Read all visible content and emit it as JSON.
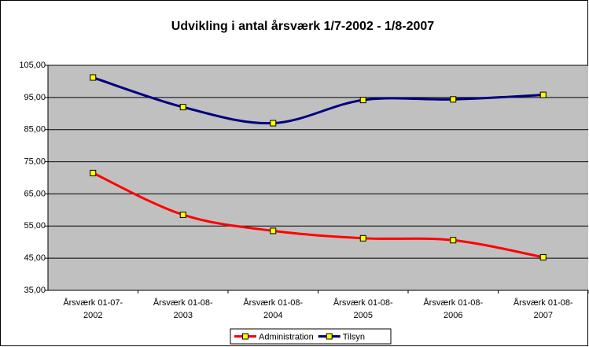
{
  "chart_data": {
    "type": "line",
    "title": "Udvikling i antal årsværk 1/7-2002 - 1/8-2007",
    "categories": [
      [
        "Årsværk 01-07-",
        "2002"
      ],
      [
        "Årsværk 01-08-",
        "2003"
      ],
      [
        "Årsværk 01-08-",
        "2004"
      ],
      [
        "Årsværk 01-08-",
        "2005"
      ],
      [
        "Årsværk 01-08-",
        "2006"
      ],
      [
        "Årsværk 01-08-",
        "2007"
      ]
    ],
    "series": [
      {
        "name": "Administration",
        "color": "#ff0000",
        "values": [
          71.5,
          58.5,
          53.5,
          51.2,
          50.6,
          45.3
        ]
      },
      {
        "name": "Tilsyn",
        "color": "#000080",
        "values": [
          101.2,
          92.0,
          87.0,
          94.2,
          94.4,
          95.8
        ]
      }
    ],
    "marker_color": "#ffff00",
    "plot_background": "#c0c0c0",
    "ylim": [
      35,
      105
    ],
    "yticks": [
      {
        "value": 35,
        "label": "35,00"
      },
      {
        "value": 45,
        "label": "45,00"
      },
      {
        "value": 55,
        "label": "55,00"
      },
      {
        "value": 65,
        "label": "65,00"
      },
      {
        "value": 75,
        "label": "75,00"
      },
      {
        "value": 85,
        "label": "85,00"
      },
      {
        "value": 95,
        "label": "95,00"
      },
      {
        "value": 105,
        "label": "105,00"
      }
    ],
    "grid": true,
    "smooth": true,
    "legend": "bottom"
  }
}
